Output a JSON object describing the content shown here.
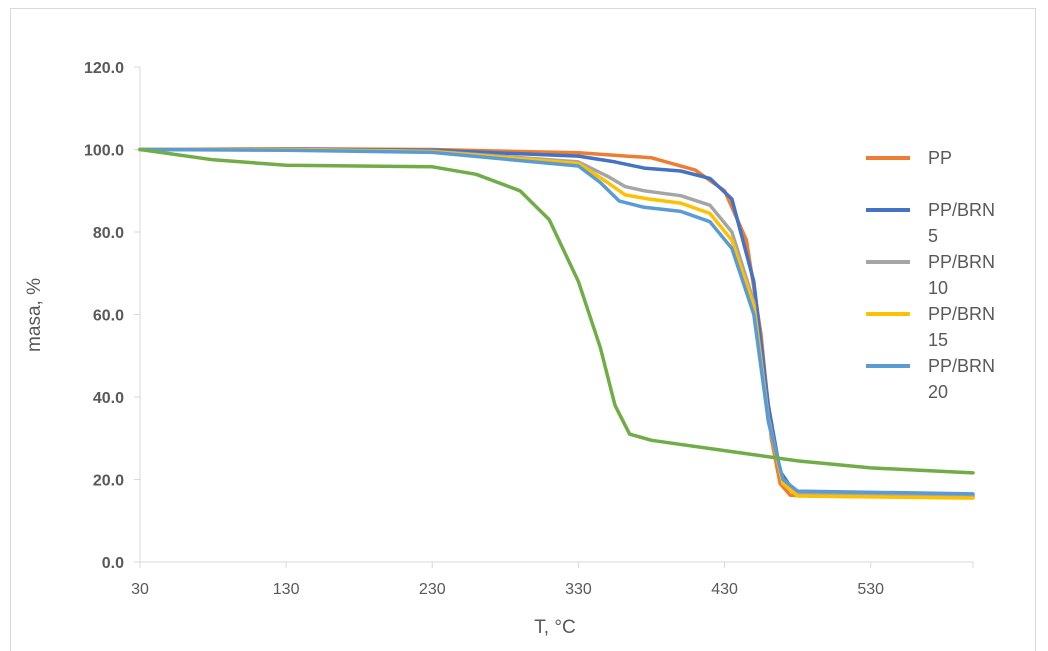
{
  "chart_data": {
    "type": "line",
    "title": "",
    "xlabel": "T, °C",
    "ylabel": "masa, %",
    "xlim": [
      30,
      600
    ],
    "ylim": [
      0,
      120
    ],
    "xticks": [
      30,
      130,
      230,
      330,
      430,
      530
    ],
    "xtick_labels": [
      "30",
      "130",
      "230",
      "330",
      "430",
      "530"
    ],
    "yticks": [
      0,
      20,
      40,
      60,
      80,
      100,
      120
    ],
    "ytick_labels": [
      "0.0",
      "20.0",
      "40.0",
      "60.0",
      "80.0",
      "100.0",
      "120.0"
    ],
    "grid": false,
    "legend_position": "right",
    "series": [
      {
        "name": "PP",
        "legend_lines": [
          "PP"
        ],
        "color": "#ED7D31",
        "points": [
          [
            30,
            100
          ],
          [
            130,
            100.2
          ],
          [
            230,
            100
          ],
          [
            330,
            99.2
          ],
          [
            380,
            98
          ],
          [
            410,
            95
          ],
          [
            430,
            90
          ],
          [
            445,
            78
          ],
          [
            455,
            55
          ],
          [
            462,
            30
          ],
          [
            468,
            19
          ],
          [
            475,
            16.2
          ],
          [
            490,
            16
          ],
          [
            530,
            15.8
          ],
          [
            600,
            15.8
          ]
        ]
      },
      {
        "name": "PP/BRN 5",
        "legend_lines": [
          "PP/BRN",
          "5"
        ],
        "color": "#4472C4",
        "points": [
          [
            30,
            100
          ],
          [
            130,
            100.1
          ],
          [
            230,
            99.8
          ],
          [
            330,
            98.4
          ],
          [
            355,
            97
          ],
          [
            375,
            95.5
          ],
          [
            400,
            94.8
          ],
          [
            420,
            93
          ],
          [
            435,
            88
          ],
          [
            450,
            68
          ],
          [
            460,
            38
          ],
          [
            468,
            22
          ],
          [
            478,
            16.8
          ],
          [
            500,
            16.5
          ],
          [
            600,
            16.2
          ]
        ]
      },
      {
        "name": "PP/BRN 10",
        "legend_lines": [
          "PP/BRN",
          "10"
        ],
        "color": "#A5A5A5",
        "points": [
          [
            30,
            100
          ],
          [
            130,
            100
          ],
          [
            230,
            99.6
          ],
          [
            330,
            97
          ],
          [
            350,
            93.5
          ],
          [
            362,
            91
          ],
          [
            375,
            90
          ],
          [
            400,
            88.8
          ],
          [
            420,
            86.5
          ],
          [
            435,
            80
          ],
          [
            450,
            63
          ],
          [
            460,
            35
          ],
          [
            470,
            19
          ],
          [
            480,
            16.5
          ],
          [
            600,
            16
          ]
        ]
      },
      {
        "name": "PP/BRN 15",
        "legend_lines": [
          "PP/BRN",
          "15"
        ],
        "color": "#FFC000",
        "points": [
          [
            30,
            100
          ],
          [
            130,
            100
          ],
          [
            230,
            99.5
          ],
          [
            330,
            96.6
          ],
          [
            350,
            92
          ],
          [
            362,
            89
          ],
          [
            378,
            88
          ],
          [
            400,
            87
          ],
          [
            420,
            84.5
          ],
          [
            435,
            78
          ],
          [
            450,
            62
          ],
          [
            460,
            34
          ],
          [
            470,
            19
          ],
          [
            480,
            16
          ],
          [
            600,
            15.5
          ]
        ]
      },
      {
        "name": "PP/BRN 20",
        "legend_lines": [
          "PP/BRN",
          "20"
        ],
        "color": "#5B9BD5",
        "points": [
          [
            30,
            100
          ],
          [
            130,
            99.8
          ],
          [
            230,
            99.3
          ],
          [
            330,
            96
          ],
          [
            345,
            92
          ],
          [
            358,
            87.5
          ],
          [
            375,
            86
          ],
          [
            400,
            85
          ],
          [
            420,
            82.5
          ],
          [
            435,
            76
          ],
          [
            450,
            60
          ],
          [
            460,
            34
          ],
          [
            470,
            20
          ],
          [
            480,
            17.2
          ],
          [
            600,
            16.5
          ]
        ]
      },
      {
        "name": "",
        "legend_lines": [],
        "color": "#70AD47",
        "points": [
          [
            30,
            100
          ],
          [
            80,
            97.5
          ],
          [
            130,
            96.2
          ],
          [
            230,
            95.8
          ],
          [
            260,
            94
          ],
          [
            290,
            90
          ],
          [
            310,
            83
          ],
          [
            330,
            68
          ],
          [
            345,
            52
          ],
          [
            355,
            38
          ],
          [
            365,
            31
          ],
          [
            380,
            29.5
          ],
          [
            430,
            27
          ],
          [
            480,
            24.5
          ],
          [
            530,
            22.8
          ],
          [
            600,
            21.6
          ]
        ]
      }
    ]
  }
}
